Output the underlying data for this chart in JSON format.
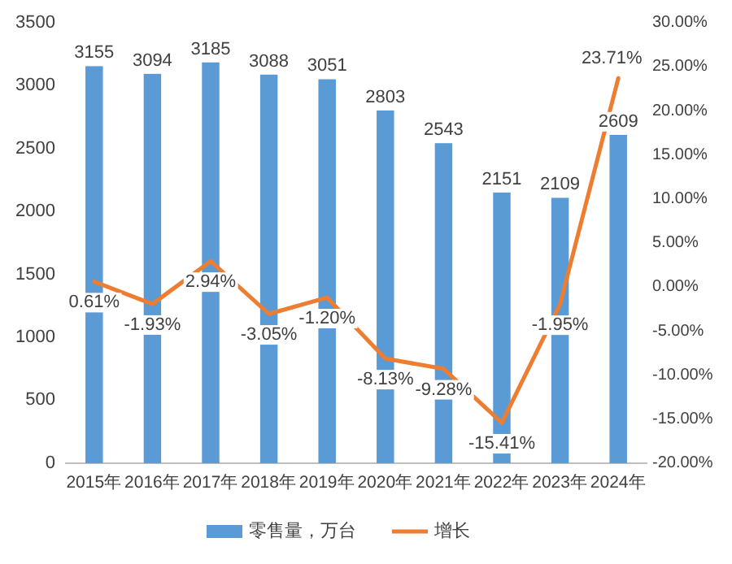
{
  "chart_data": {
    "type": "bar",
    "categories": [
      "2015年",
      "2016年",
      "2017年",
      "2018年",
      "2019年",
      "2020年",
      "2021年",
      "2022年",
      "2023年",
      "2024年"
    ],
    "series": [
      {
        "name": "零售量，万台",
        "color": "#5b9bd5",
        "values": [
          3155,
          3094,
          3185,
          3088,
          3051,
          2803,
          2543,
          2151,
          2109,
          2609
        ],
        "value_labels": [
          "3155",
          "3094",
          "3185",
          "3088",
          "3051",
          "2803",
          "2543",
          "2151",
          "2109",
          "2609"
        ]
      },
      {
        "name": "增长",
        "type": "line",
        "axis": "y2",
        "color": "#ed7d31",
        "values": [
          0.61,
          -1.93,
          2.94,
          -3.05,
          -1.2,
          -8.13,
          -9.28,
          -15.41,
          -1.95,
          23.71
        ],
        "value_labels": [
          "0.61%",
          "-1.93%",
          "2.94%",
          "-3.05%",
          "-1.20%",
          "-8.13%",
          "-9.28%",
          "-15.41%",
          "-1.95%",
          "23.71%"
        ]
      }
    ],
    "ylim": [
      0,
      3500
    ],
    "yticks": [
      0,
      500,
      1000,
      1500,
      2000,
      2500,
      3000,
      3500
    ],
    "y2lim": [
      -20,
      30
    ],
    "y2ticks": [
      {
        "value": -20,
        "label": "-20.00%"
      },
      {
        "value": -15,
        "label": "-15.00%"
      },
      {
        "value": -10,
        "label": "-10.00%"
      },
      {
        "value": -5,
        "label": "-5.00%"
      },
      {
        "value": 0,
        "label": "0.00%"
      },
      {
        "value": 5,
        "label": "5.00%"
      },
      {
        "value": 10,
        "label": "10.00%"
      },
      {
        "value": 15,
        "label": "15.00%"
      },
      {
        "value": 20,
        "label": "20.00%"
      },
      {
        "value": 25,
        "label": "25.00%"
      },
      {
        "value": 30,
        "label": "30.00%"
      }
    ],
    "legend": "bottom",
    "grid": false,
    "marker": "none",
    "line_style": "solid"
  }
}
